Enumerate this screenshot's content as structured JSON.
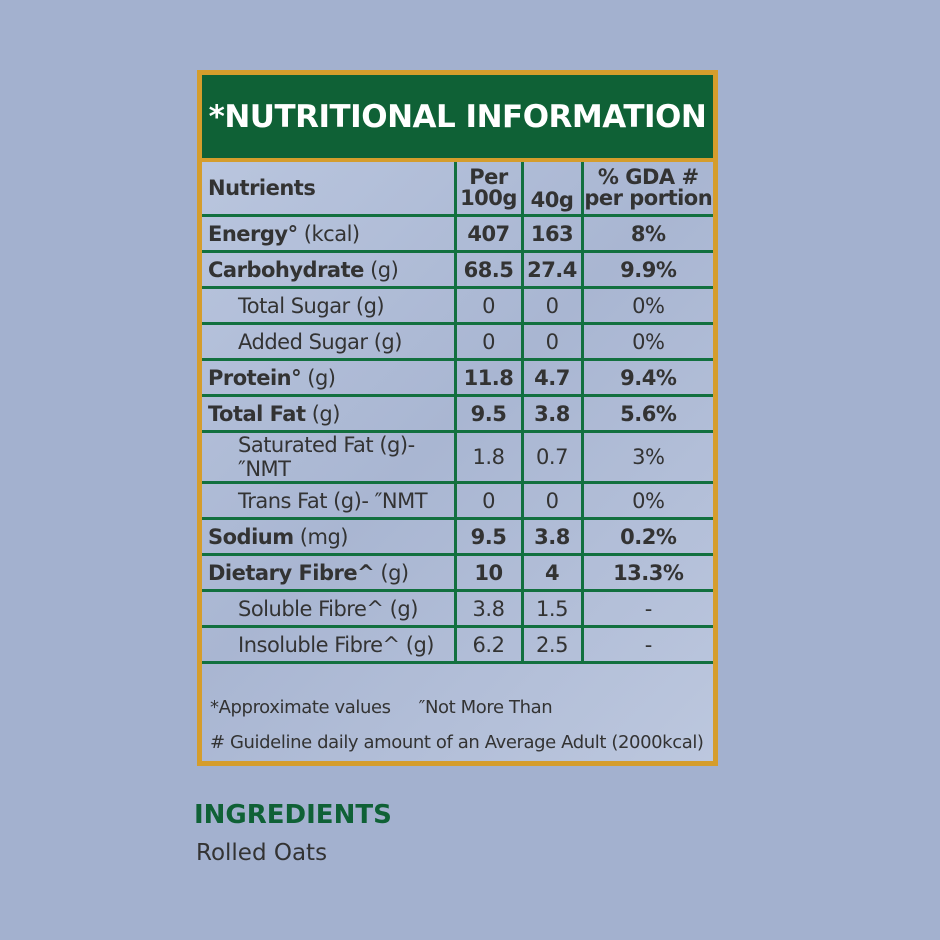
{
  "title": "*NUTRITIONAL INFORMATION",
  "headers": {
    "nutrients": "Nutrients",
    "per100_a": "Per",
    "per100_b": "100g",
    "portion": "40g",
    "gda_a": "% GDA #",
    "gda_b": "per portion"
  },
  "rows": [
    {
      "name": "Energy°",
      "unit": " (kcal)",
      "bold": true,
      "per100": "407",
      "portion": "163",
      "gda": "8%"
    },
    {
      "name": "Carbohydrate",
      "unit": " (g)",
      "bold": true,
      "per100": "68.5",
      "portion": "27.4",
      "gda": "9.9%"
    },
    {
      "name": "Total Sugar",
      "unit": " (g)",
      "bold": false,
      "per100": "0",
      "portion": "0",
      "gda": "0%"
    },
    {
      "name": "Added Sugar",
      "unit": " (g)",
      "bold": false,
      "per100": "0",
      "portion": "0",
      "gda": "0%"
    },
    {
      "name": "Protein°",
      "unit": " (g)",
      "bold": true,
      "per100": "11.8",
      "portion": "4.7",
      "gda": "9.4%"
    },
    {
      "name": "Total Fat",
      "unit": " (g)",
      "bold": true,
      "per100": "9.5",
      "portion": "3.8",
      "gda": "5.6%"
    },
    {
      "name": "Saturated Fat",
      "unit": " (g)- ″NMT",
      "bold": false,
      "per100": "1.8",
      "portion": "0.7",
      "gda": "3%"
    },
    {
      "name": "Trans Fat",
      "unit": " (g)- ″NMT",
      "bold": false,
      "per100": "0",
      "portion": "0",
      "gda": "0%"
    },
    {
      "name": "Sodium",
      "unit": " (mg)",
      "bold": true,
      "per100": "9.5",
      "portion": "3.8",
      "gda": "0.2%"
    },
    {
      "name": "Dietary Fibre^",
      "unit": " (g)",
      "bold": true,
      "per100": "10",
      "portion": "4",
      "gda": "13.3%"
    },
    {
      "name": "Soluble Fibre^",
      "unit": " (g)",
      "bold": false,
      "per100": "3.8",
      "portion": "1.5",
      "gda": "-"
    },
    {
      "name": "Insoluble Fibre^",
      "unit": " (g)",
      "bold": false,
      "per100": "6.2",
      "portion": "2.5",
      "gda": "-"
    }
  ],
  "footnotes": {
    "approx": "*Approximate values",
    "nmt": "″Not More Than",
    "gda": "# Guideline daily amount of an Average Adult (2000kcal)"
  },
  "ingredients": {
    "title": "INGREDIENTS",
    "value": "Rolled Oats"
  }
}
